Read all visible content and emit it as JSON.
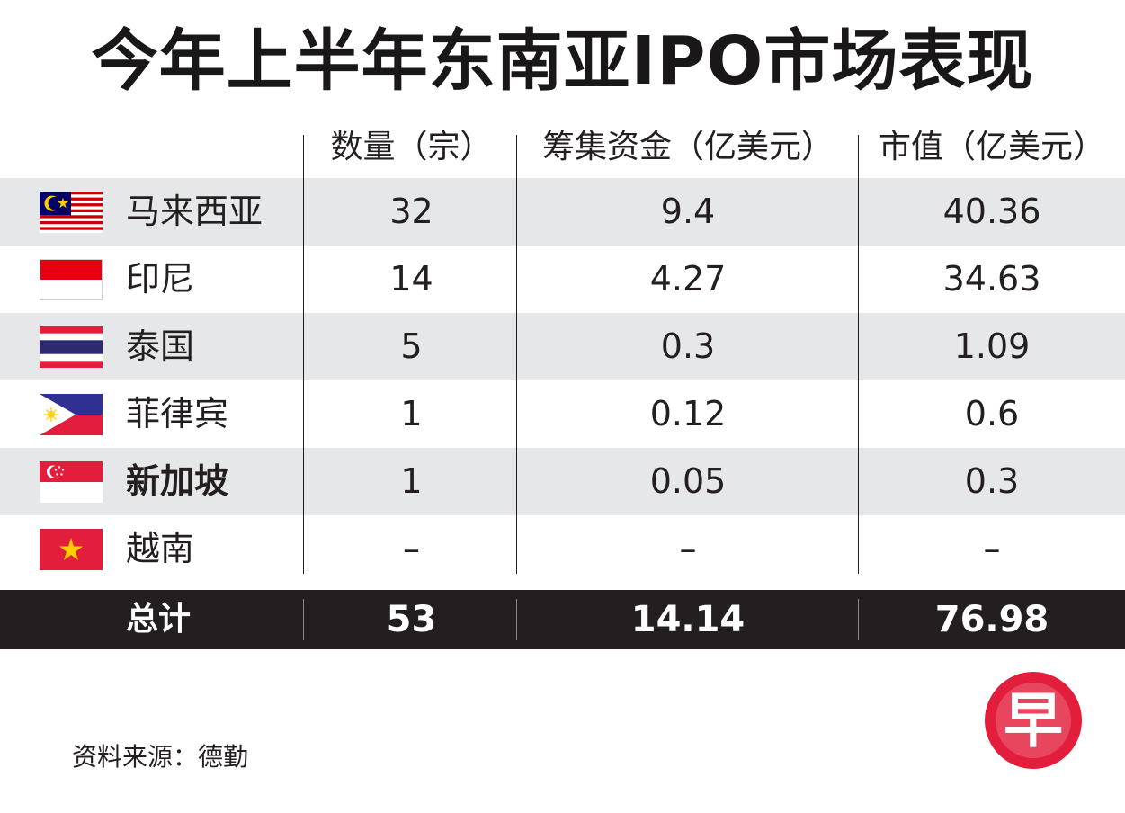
{
  "title": "今年上半年东南亚IPO市场表现",
  "chart_data": {
    "type": "table",
    "title": "今年上半年东南亚IPO市场表现",
    "columns": [
      "数量（宗）",
      "筹集资金（亿美元）",
      "市值（亿美元）"
    ],
    "rows": [
      {
        "country": "马来西亚",
        "flag": "malaysia-flag-icon",
        "count": "32",
        "funds": "9.4",
        "market_cap": "40.36"
      },
      {
        "country": "印尼",
        "flag": "indonesia-flag-icon",
        "count": "14",
        "funds": "4.27",
        "market_cap": "34.63"
      },
      {
        "country": "泰国",
        "flag": "thailand-flag-icon",
        "count": "5",
        "funds": "0.3",
        "market_cap": "1.09"
      },
      {
        "country": "菲律宾",
        "flag": "philippines-flag-icon",
        "count": "1",
        "funds": "0.12",
        "market_cap": "0.6"
      },
      {
        "country": "新加坡",
        "flag": "singapore-flag-icon",
        "count": "1",
        "funds": "0.05",
        "market_cap": "0.3"
      },
      {
        "country": "越南",
        "flag": "vietnam-flag-icon",
        "count": "–",
        "funds": "–",
        "market_cap": "–"
      }
    ],
    "total": {
      "label": "总计",
      "count": "53",
      "funds": "14.14",
      "market_cap": "76.98"
    }
  },
  "source": "资料来源：德勤",
  "logo": {
    "char": "早",
    "icon": "zaobao-logo-icon",
    "color": "#e31e3c"
  },
  "colors": {
    "shade": "#e6e7e8",
    "total_bg": "#231f20",
    "text": "#231f20"
  }
}
